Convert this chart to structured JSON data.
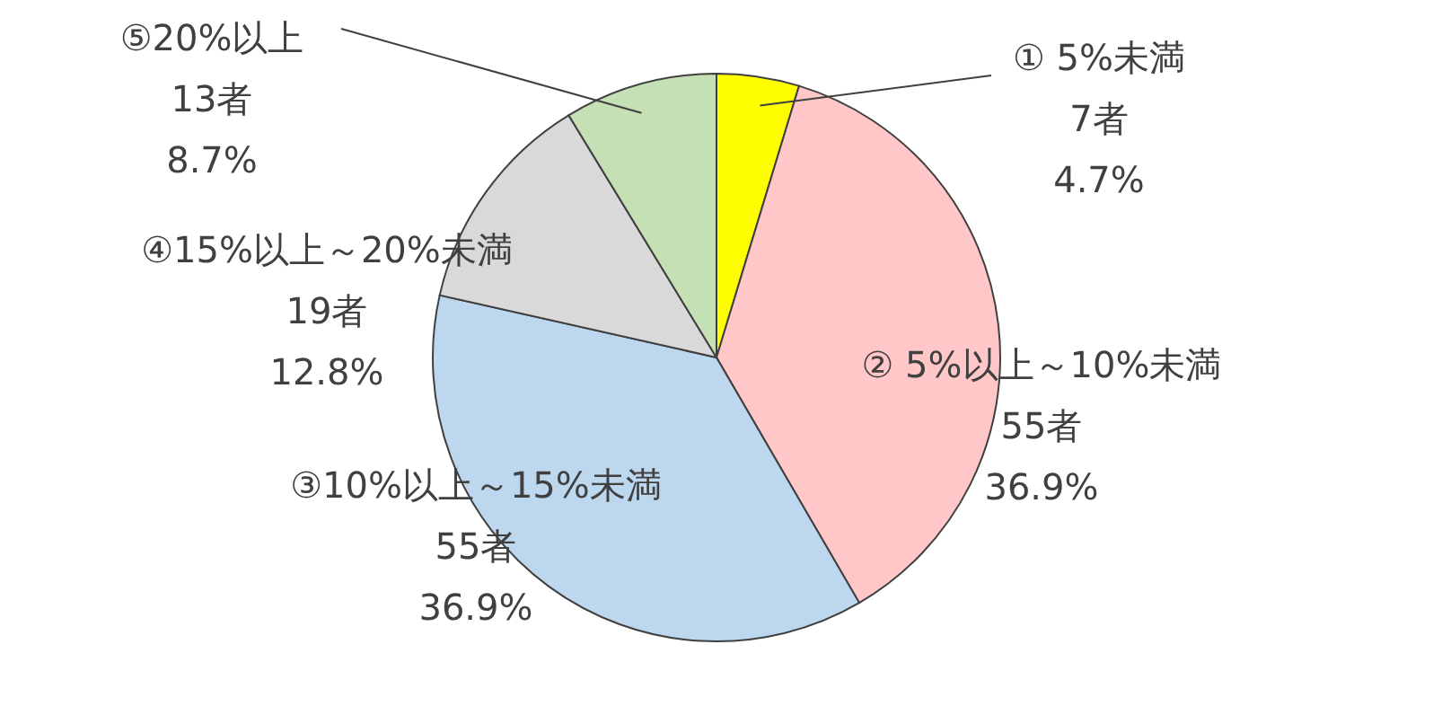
{
  "chart_data": {
    "type": "pie",
    "categories": [
      "① 5%未満",
      "② 5%以上～10%未満",
      "③10%以上～15%未満",
      "④15%以上～20%未満",
      "⑤20%以上"
    ],
    "values": [
      7,
      55,
      55,
      19,
      13
    ],
    "value_labels": [
      "7者\n4.7%",
      "55者\n36.9%",
      "55者\n36.9%",
      "19者\n12.8%",
      "13者\n8.7%"
    ],
    "colors": [
      "#ffff00",
      "#ffc7c7",
      "#bdd7ee",
      "#d9d9d9",
      "#c5e0b4"
    ]
  }
}
